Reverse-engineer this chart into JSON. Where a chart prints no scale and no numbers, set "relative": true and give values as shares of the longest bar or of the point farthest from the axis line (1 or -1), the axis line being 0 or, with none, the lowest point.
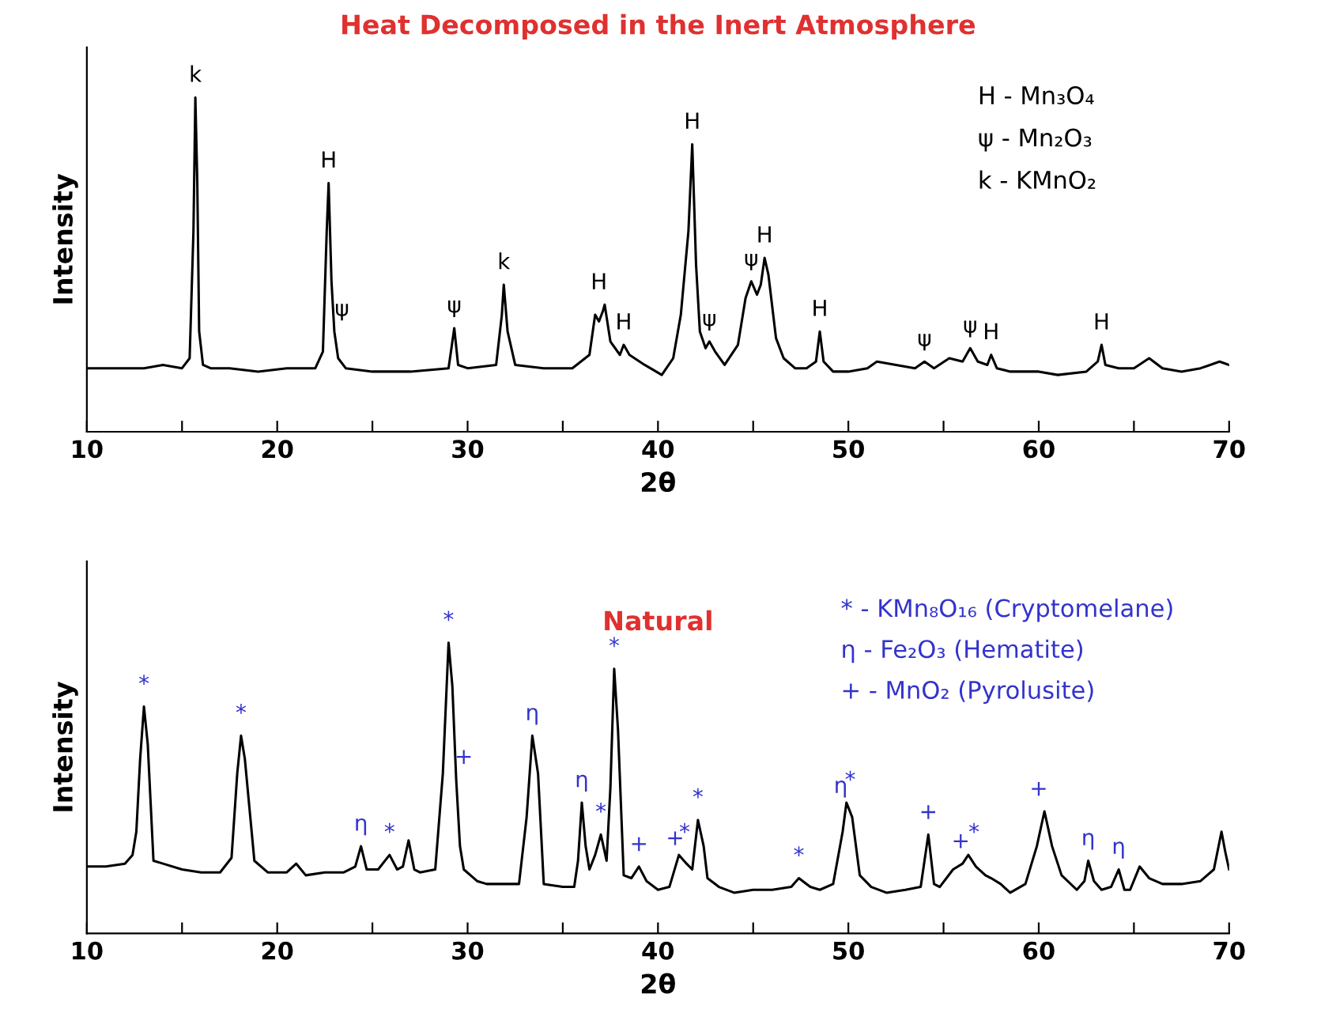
{
  "chart_data": [
    {
      "type": "line",
      "title": "Heat Decomposed in the Inert Atmosphere",
      "xlabel": "2θ",
      "ylabel": "Intensity",
      "relative": true,
      "tick_labels": "x",
      "grid": false,
      "legend": false,
      "xlim": [
        10,
        70
      ],
      "xticks": [
        10,
        {
          "value": 15,
          "label": null
        },
        20,
        {
          "value": 25,
          "label": null
        },
        30,
        {
          "value": 35,
          "label": null
        },
        40,
        {
          "value": 45,
          "label": null
        },
        50,
        {
          "value": 55,
          "label": null
        },
        60,
        {
          "value": 65,
          "label": null
        },
        70
      ],
      "series": [
        {
          "color": "#000000",
          "x": [
            10,
            11,
            12,
            13,
            14,
            15,
            15.4,
            15.6,
            15.7,
            15.8,
            15.9,
            16.1,
            16.5,
            17.5,
            19,
            20.5,
            22,
            22.4,
            22.6,
            22.7,
            22.85,
            23.0,
            23.2,
            23.6,
            25,
            27,
            29.0,
            29.3,
            29.5,
            30,
            31.5,
            31.8,
            31.9,
            32.1,
            32.5,
            34,
            35.5,
            36.4,
            36.7,
            36.9,
            37.1,
            37.2,
            37.5,
            38.0,
            38.2,
            38.5,
            39.3,
            40.2,
            40.8,
            41.2,
            41.6,
            41.8,
            42.0,
            42.2,
            42.5,
            42.7,
            43.0,
            43.5,
            44.2,
            44.6,
            44.9,
            45.2,
            45.4,
            45.6,
            45.8,
            46.2,
            46.6,
            47.2,
            47.8,
            48.3,
            48.5,
            48.7,
            49.2,
            50,
            51,
            51.5,
            52.5,
            53.5,
            54.0,
            54.5,
            55.3,
            56.0,
            56.4,
            56.8,
            57.3,
            57.5,
            57.8,
            58.5,
            60,
            61,
            62.5,
            63.1,
            63.3,
            63.5,
            64.2,
            65.0,
            65.8,
            66.5,
            67.5,
            68.5,
            69.5,
            70
          ],
          "values": [
            0.19,
            0.19,
            0.19,
            0.19,
            0.2,
            0.19,
            0.22,
            0.6,
            1.0,
            0.75,
            0.3,
            0.2,
            0.19,
            0.19,
            0.18,
            0.19,
            0.19,
            0.24,
            0.6,
            0.744,
            0.45,
            0.3,
            0.22,
            0.19,
            0.18,
            0.18,
            0.19,
            0.31,
            0.2,
            0.19,
            0.2,
            0.35,
            0.44,
            0.3,
            0.2,
            0.19,
            0.19,
            0.23,
            0.35,
            0.33,
            0.36,
            0.38,
            0.27,
            0.23,
            0.26,
            0.23,
            0.2,
            0.17,
            0.22,
            0.35,
            0.6,
            0.86,
            0.5,
            0.3,
            0.25,
            0.27,
            0.24,
            0.2,
            0.26,
            0.4,
            0.45,
            0.41,
            0.44,
            0.52,
            0.47,
            0.28,
            0.22,
            0.19,
            0.19,
            0.21,
            0.3,
            0.21,
            0.18,
            0.18,
            0.19,
            0.21,
            0.2,
            0.19,
            0.21,
            0.19,
            0.22,
            0.21,
            0.25,
            0.21,
            0.2,
            0.23,
            0.19,
            0.18,
            0.18,
            0.17,
            0.18,
            0.21,
            0.26,
            0.2,
            0.19,
            0.19,
            0.22,
            0.19,
            0.18,
            0.19,
            0.21,
            0.2
          ]
        }
      ],
      "annotations": [
        {
          "text": "k",
          "x": 15.7,
          "y": 1.0
        },
        {
          "text": "H",
          "x": 22.7,
          "y": 0.744
        },
        {
          "text": "ψ",
          "x": 23.4,
          "y": 0.3
        },
        {
          "text": "ψ",
          "x": 29.3,
          "y": 0.31
        },
        {
          "text": "k",
          "x": 31.9,
          "y": 0.44
        },
        {
          "text": "H",
          "x": 36.9,
          "y": 0.38
        },
        {
          "text": "H",
          "x": 38.2,
          "y": 0.26
        },
        {
          "text": "H",
          "x": 41.8,
          "y": 0.86
        },
        {
          "text": "ψ",
          "x": 42.7,
          "y": 0.27
        },
        {
          "text": "ψ",
          "x": 44.9,
          "y": 0.45
        },
        {
          "text": "H",
          "x": 45.6,
          "y": 0.52
        },
        {
          "text": "H",
          "x": 48.5,
          "y": 0.3
        },
        {
          "text": "ψ",
          "x": 54.0,
          "y": 0.21
        },
        {
          "text": "ψ",
          "x": 56.4,
          "y": 0.25
        },
        {
          "text": "H",
          "x": 57.5,
          "y": 0.23
        },
        {
          "text": "H",
          "x": 63.3,
          "y": 0.26
        },
        "H - Mn₃O₄",
        "ψ - Mn₂O₃",
        "k - KMnO₂"
      ]
    },
    {
      "type": "line",
      "title": "Natural",
      "xlabel": "2θ",
      "ylabel": "Intensity",
      "relative": true,
      "tick_labels": "x",
      "grid": false,
      "legend": false,
      "xlim": [
        10,
        70
      ],
      "xticks": [
        10,
        {
          "value": 15,
          "label": null
        },
        20,
        {
          "value": 25,
          "label": null
        },
        30,
        {
          "value": 35,
          "label": null
        },
        40,
        {
          "value": 45,
          "label": null
        },
        50,
        {
          "value": 55,
          "label": null
        },
        60,
        {
          "value": 65,
          "label": null
        },
        70
      ],
      "series": [
        {
          "color": "#000000",
          "x": [
            10,
            11,
            12,
            12.4,
            12.6,
            12.8,
            13.0,
            13.2,
            13.5,
            14,
            15,
            16,
            17,
            17.6,
            17.9,
            18.1,
            18.3,
            18.8,
            19.5,
            20.5,
            21,
            21.5,
            22.5,
            23.5,
            24.1,
            24.4,
            24.7,
            25.3,
            25.9,
            26.3,
            26.6,
            26.9,
            27.2,
            27.5,
            28.3,
            28.7,
            29.0,
            29.2,
            29.4,
            29.6,
            29.8,
            30.5,
            31,
            32,
            32.7,
            33.1,
            33.4,
            33.7,
            34,
            35,
            35.6,
            35.8,
            36.0,
            36.2,
            36.4,
            36.7,
            37.0,
            37.3,
            37.5,
            37.7,
            37.9,
            38.2,
            38.6,
            39.0,
            39.4,
            40,
            40.6,
            41.1,
            41.5,
            41.8,
            42.1,
            42.4,
            42.6,
            43.2,
            44,
            45,
            46,
            47,
            47.4,
            48,
            48.5,
            49.2,
            49.7,
            49.9,
            50.2,
            50.6,
            51.2,
            52,
            53,
            53.8,
            54.2,
            54.5,
            54.8,
            55.5,
            56.0,
            56.3,
            56.7,
            57.2,
            57.5,
            58,
            58.5,
            59.3,
            59.9,
            60.3,
            60.7,
            61.2,
            62.0,
            62.4,
            62.6,
            62.9,
            63.3,
            63.8,
            64.2,
            64.5,
            64.8,
            65.3,
            65.8,
            66.5,
            67.5,
            68.5,
            69.2,
            69.6,
            69.8,
            70
          ],
          "values": [
            0.23,
            0.23,
            0.24,
            0.27,
            0.35,
            0.6,
            0.78,
            0.65,
            0.25,
            0.24,
            0.22,
            0.21,
            0.21,
            0.26,
            0.55,
            0.68,
            0.6,
            0.25,
            0.21,
            0.21,
            0.24,
            0.2,
            0.21,
            0.21,
            0.23,
            0.3,
            0.22,
            0.22,
            0.27,
            0.22,
            0.23,
            0.32,
            0.22,
            0.21,
            0.22,
            0.55,
            1.0,
            0.85,
            0.53,
            0.3,
            0.22,
            0.18,
            0.17,
            0.17,
            0.17,
            0.4,
            0.68,
            0.55,
            0.17,
            0.16,
            0.16,
            0.25,
            0.45,
            0.3,
            0.22,
            0.27,
            0.34,
            0.25,
            0.5,
            0.91,
            0.7,
            0.2,
            0.19,
            0.23,
            0.18,
            0.15,
            0.16,
            0.27,
            0.24,
            0.22,
            0.39,
            0.3,
            0.19,
            0.16,
            0.14,
            0.15,
            0.15,
            0.16,
            0.19,
            0.16,
            0.15,
            0.17,
            0.35,
            0.45,
            0.4,
            0.2,
            0.16,
            0.14,
            0.15,
            0.16,
            0.34,
            0.17,
            0.16,
            0.22,
            0.24,
            0.27,
            0.23,
            0.2,
            0.19,
            0.17,
            0.14,
            0.17,
            0.3,
            0.42,
            0.3,
            0.2,
            0.15,
            0.18,
            0.25,
            0.18,
            0.15,
            0.16,
            0.22,
            0.15,
            0.15,
            0.23,
            0.19,
            0.17,
            0.17,
            0.18,
            0.22,
            0.35,
            0.28,
            0.22
          ]
        }
      ],
      "annotations": [
        {
          "text": "*",
          "x": 13.0,
          "y": 0.78
        },
        {
          "text": "*",
          "x": 18.1,
          "y": 0.68
        },
        {
          "text": "η",
          "x": 24.4,
          "y": 0.3
        },
        {
          "text": "*",
          "x": 25.9,
          "y": 0.27
        },
        {
          "text": "*",
          "x": 29.0,
          "y": 1.0
        },
        {
          "text": "+",
          "x": 29.8,
          "y": 0.53
        },
        {
          "text": "η",
          "x": 33.4,
          "y": 0.68
        },
        {
          "text": "η",
          "x": 36.0,
          "y": 0.45
        },
        {
          "text": "*",
          "x": 37.0,
          "y": 0.34
        },
        {
          "text": "*",
          "x": 37.7,
          "y": 0.91
        },
        {
          "text": "+",
          "x": 39.0,
          "y": 0.23
        },
        {
          "text": "+",
          "x": 40.9,
          "y": 0.25
        },
        {
          "text": "*",
          "x": 41.4,
          "y": 0.27
        },
        {
          "text": "*",
          "x": 42.1,
          "y": 0.39
        },
        {
          "text": "*",
          "x": 47.4,
          "y": 0.19
        },
        {
          "text": "η",
          "x": 49.6,
          "y": 0.43
        },
        {
          "text": "*",
          "x": 50.1,
          "y": 0.45
        },
        {
          "text": "+",
          "x": 54.2,
          "y": 0.34
        },
        {
          "text": "+",
          "x": 55.9,
          "y": 0.24
        },
        {
          "text": "*",
          "x": 56.6,
          "y": 0.27
        },
        {
          "text": "+",
          "x": 60.0,
          "y": 0.42
        },
        {
          "text": "η",
          "x": 62.6,
          "y": 0.25
        },
        {
          "text": "η",
          "x": 64.2,
          "y": 0.22
        },
        "* - KMn₈O₁₆ (Cryptomelane)",
        "η - Fe₂O₃ (Hematite)",
        "+ - MnO₂ (Pyrolusite)"
      ]
    }
  ]
}
